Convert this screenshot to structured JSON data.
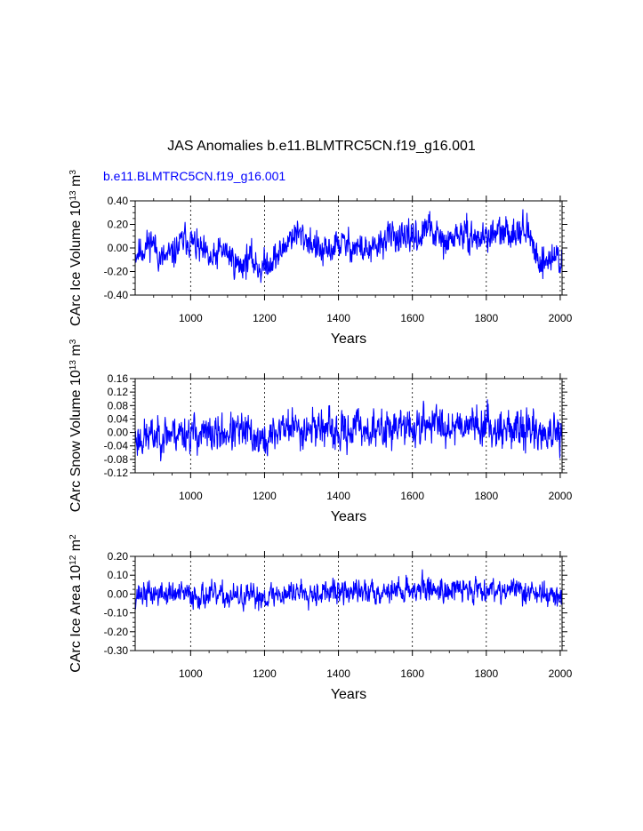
{
  "title": "JAS Anomalies b.e11.BLMTRC5CN.f19_g16.001",
  "series_label": "b.e11.BLMTRC5CN.f19_g16.001",
  "colors": {
    "series": "#0000ff",
    "axis": "#000000",
    "grid": "#000000"
  },
  "chart_data": [
    {
      "type": "line",
      "ylabel": "CArc Ice Volume 10^13 m^3",
      "ylabel_parts": {
        "main": "CArc Ice Volume 10",
        "exp1": "13",
        "mid": " m",
        "exp2": "3"
      },
      "xlabel": "Years",
      "xlim": [
        850,
        2005
      ],
      "ylim": [
        -0.4,
        0.4
      ],
      "yticks": [
        -0.4,
        -0.2,
        0.0,
        0.2,
        0.4
      ],
      "ytick_labels": [
        "-0.40",
        "-0.20",
        "0.00",
        "0.20",
        "0.40"
      ],
      "xticks": [
        1000,
        1200,
        1400,
        1600,
        1800,
        2000
      ],
      "xtick_labels": [
        "1000",
        "1200",
        "1400",
        "1600",
        "1800",
        "2000"
      ],
      "grid_x": [
        1000,
        1200,
        1400,
        1600,
        1800,
        2000
      ],
      "series": [
        {
          "name": "b.e11.BLMTRC5CN.f19_g16.001",
          "trend_years": [
            850,
            875,
            895,
            920,
            950,
            985,
            1000,
            1030,
            1060,
            1080,
            1100,
            1130,
            1160,
            1190,
            1210,
            1240,
            1270,
            1290,
            1320,
            1360,
            1400,
            1430,
            1460,
            1490,
            1520,
            1550,
            1580,
            1600,
            1620,
            1640,
            1660,
            1690,
            1720,
            1750,
            1780,
            1800,
            1830,
            1860,
            1890,
            1910,
            1930,
            1950,
            1970,
            1990,
            2005
          ],
          "trend_values": [
            -0.05,
            0.0,
            0.07,
            -0.1,
            -0.06,
            0.08,
            0.06,
            -0.04,
            -0.12,
            -0.02,
            -0.04,
            -0.16,
            -0.08,
            -0.18,
            -0.12,
            -0.06,
            0.1,
            0.12,
            0.07,
            -0.06,
            0.04,
            0.02,
            0.0,
            -0.04,
            0.06,
            0.12,
            0.04,
            0.12,
            0.08,
            0.18,
            0.12,
            0.02,
            0.12,
            0.1,
            0.08,
            0.1,
            0.12,
            0.12,
            0.18,
            0.14,
            -0.02,
            -0.12,
            -0.1,
            -0.06,
            -0.12
          ],
          "noise": 0.075,
          "seed": 11
        }
      ]
    },
    {
      "type": "line",
      "ylabel": "CArc Snow Volume 10^13 m^3",
      "ylabel_parts": {
        "main": "CArc Snow Volume 10",
        "exp1": "13",
        "mid": " m",
        "exp2": "3"
      },
      "xlabel": "Years",
      "xlim": [
        850,
        2005
      ],
      "ylim": [
        -0.12,
        0.16
      ],
      "yticks": [
        -0.12,
        -0.08,
        -0.04,
        0.0,
        0.04,
        0.08,
        0.12,
        0.16
      ],
      "ytick_labels": [
        "-0.12",
        "-0.08",
        "-0.04",
        "0.00",
        "0.04",
        "0.08",
        "0.12",
        "0.16"
      ],
      "xticks": [
        1000,
        1200,
        1400,
        1600,
        1800,
        2000
      ],
      "xtick_labels": [
        "1000",
        "1200",
        "1400",
        "1600",
        "1800",
        "2000"
      ],
      "grid_x": [
        1000,
        1200,
        1400,
        1600,
        1800,
        2000
      ],
      "series": [
        {
          "name": "b.e11.BLMTRC5CN.f19_g16.001",
          "trend_years": [
            850,
            900,
            950,
            1000,
            1050,
            1100,
            1150,
            1200,
            1250,
            1300,
            1350,
            1400,
            1450,
            1500,
            1550,
            1600,
            1650,
            1700,
            1750,
            1800,
            1850,
            1900,
            1950,
            2005
          ],
          "trend_values": [
            -0.02,
            -0.01,
            0.0,
            0.0,
            -0.01,
            0.0,
            0.0,
            -0.03,
            0.02,
            0.01,
            0.02,
            -0.01,
            0.02,
            0.0,
            0.02,
            0.01,
            0.03,
            0.02,
            0.03,
            0.02,
            0.01,
            0.01,
            0.0,
            -0.02
          ],
          "noise": 0.032,
          "seed": 23
        }
      ]
    },
    {
      "type": "line",
      "ylabel": "CArc Ice Area 10^12 m^2",
      "ylabel_parts": {
        "main": "CArc Ice Area 10",
        "exp1": "12",
        "mid": " m",
        "exp2": "2"
      },
      "xlabel": "Years",
      "xlim": [
        850,
        2005
      ],
      "ylim": [
        -0.3,
        0.2
      ],
      "yticks": [
        -0.3,
        -0.2,
        -0.1,
        0.0,
        0.1,
        0.2
      ],
      "ytick_labels": [
        "-0.30",
        "-0.20",
        "-0.10",
        "0.00",
        "0.10",
        "0.20"
      ],
      "xticks": [
        1000,
        1200,
        1400,
        1600,
        1800,
        2000
      ],
      "xtick_labels": [
        "1000",
        "1200",
        "1400",
        "1600",
        "1800",
        "2000"
      ],
      "grid_x": [
        1000,
        1200,
        1400,
        1600,
        1800,
        2000
      ],
      "series": [
        {
          "name": "b.e11.BLMTRC5CN.f19_g16.001",
          "trend_years": [
            850,
            950,
            1050,
            1150,
            1250,
            1300,
            1350,
            1450,
            1550,
            1650,
            1700,
            1800,
            1900,
            1950,
            2005
          ],
          "trend_values": [
            0.0,
            0.0,
            -0.01,
            -0.02,
            0.0,
            0.02,
            0.01,
            0.01,
            0.02,
            0.03,
            0.02,
            0.03,
            0.02,
            0.0,
            -0.02
          ],
          "noise": 0.038,
          "seed": 37
        }
      ]
    }
  ]
}
